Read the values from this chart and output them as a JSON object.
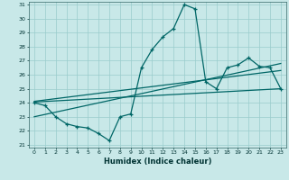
{
  "xlabel": "Humidex (Indice chaleur)",
  "bg_color": "#c8e8e8",
  "line_color": "#006666",
  "grid_color": "#99cccc",
  "xmin": -0.5,
  "xmax": 23.5,
  "ymin": 21,
  "ymax": 31,
  "yticks": [
    21,
    22,
    23,
    24,
    25,
    26,
    27,
    28,
    29,
    30,
    31
  ],
  "xticks": [
    0,
    1,
    2,
    3,
    4,
    5,
    6,
    7,
    8,
    9,
    10,
    11,
    12,
    13,
    14,
    15,
    16,
    17,
    18,
    19,
    20,
    21,
    22,
    23
  ],
  "main_line_x": [
    0,
    1,
    2,
    3,
    4,
    5,
    6,
    7,
    8,
    9,
    10,
    11,
    12,
    13,
    14,
    15,
    16,
    17,
    18,
    19,
    20,
    21,
    22,
    23
  ],
  "main_line_y": [
    24.0,
    23.8,
    23.0,
    22.5,
    22.3,
    22.2,
    21.8,
    21.3,
    23.0,
    23.2,
    26.5,
    27.8,
    28.7,
    29.3,
    31.0,
    30.7,
    25.5,
    25.0,
    26.5,
    26.7,
    27.2,
    26.6,
    26.5,
    25.0
  ],
  "reg_line1_x": [
    0,
    23
  ],
  "reg_line1_y": [
    24.05,
    25.0
  ],
  "reg_line2_x": [
    0,
    23
  ],
  "reg_line2_y": [
    23.0,
    26.8
  ],
  "reg_line3_x": [
    0,
    23
  ],
  "reg_line3_y": [
    24.1,
    26.3
  ]
}
